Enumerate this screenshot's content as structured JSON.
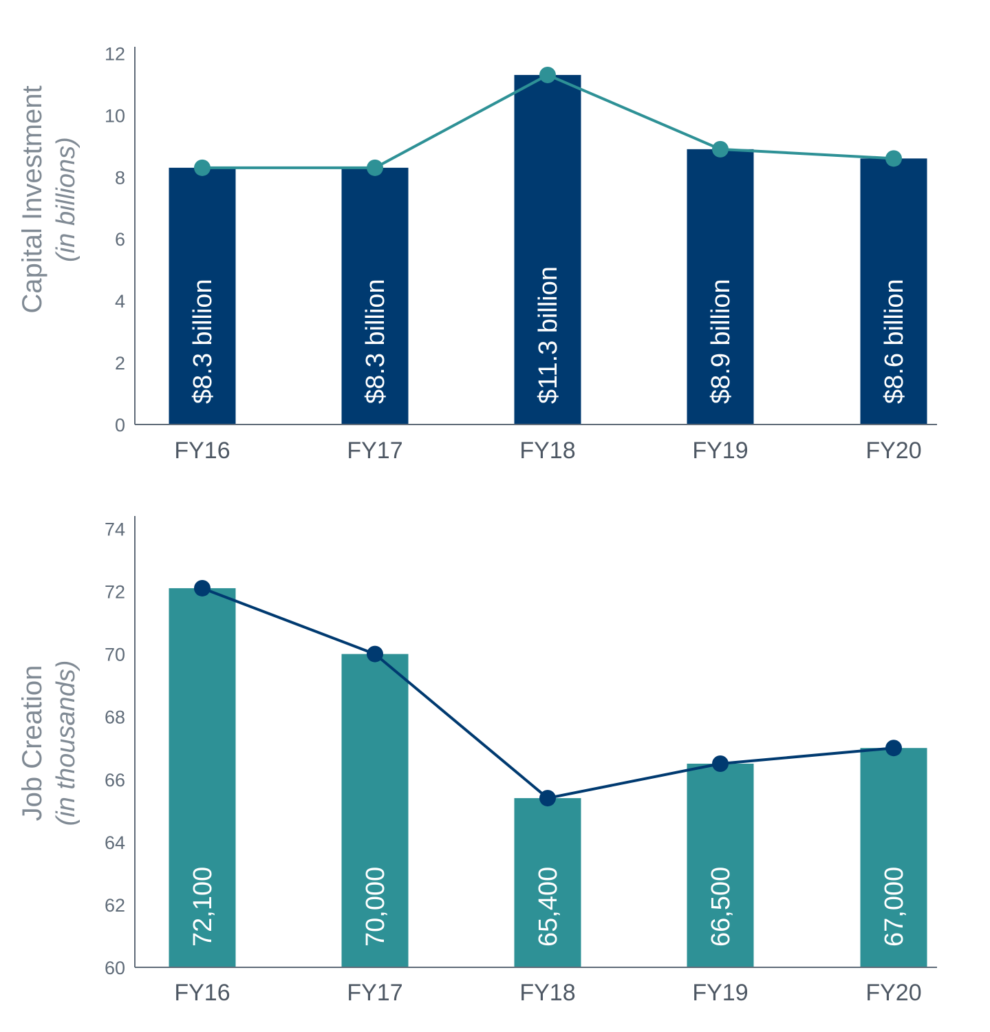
{
  "chart_data": [
    {
      "type": "bar",
      "id": "capital",
      "categories": [
        "FY16",
        "FY17",
        "FY18",
        "FY19",
        "FY20"
      ],
      "values": [
        8.3,
        8.3,
        11.3,
        8.9,
        8.6
      ],
      "line_values": [
        8.3,
        8.3,
        11.3,
        8.9,
        8.6
      ],
      "bar_labels": [
        "$8.3 billion",
        "$8.3 billion",
        "$11.3 billion",
        "$8.9 billion",
        "$8.6 billion"
      ],
      "ylabel": "Capital Investment",
      "ylabel_sub": "(in billions)",
      "ylim": [
        0,
        12.5
      ],
      "yticks": [
        0,
        2,
        4,
        6,
        8,
        10,
        12
      ],
      "bar_color": "#003a70",
      "line_color": "#2e9196"
    },
    {
      "type": "bar",
      "id": "jobs",
      "categories": [
        "FY16",
        "FY17",
        "FY18",
        "FY19",
        "FY20"
      ],
      "values": [
        72.1,
        70.0,
        65.4,
        66.5,
        67.0
      ],
      "line_values": [
        72.1,
        70.0,
        65.4,
        66.5,
        67.0
      ],
      "bar_labels": [
        "72,100",
        "70,000",
        "65,400",
        "66,500",
        "67,000"
      ],
      "ylabel": "Job Creation",
      "ylabel_sub": "(in thousands)",
      "ylim": [
        60,
        74.8
      ],
      "yticks": [
        60,
        62,
        64,
        66,
        68,
        70,
        72,
        74
      ],
      "bar_color": "#2e9196",
      "line_color": "#003a70"
    }
  ]
}
